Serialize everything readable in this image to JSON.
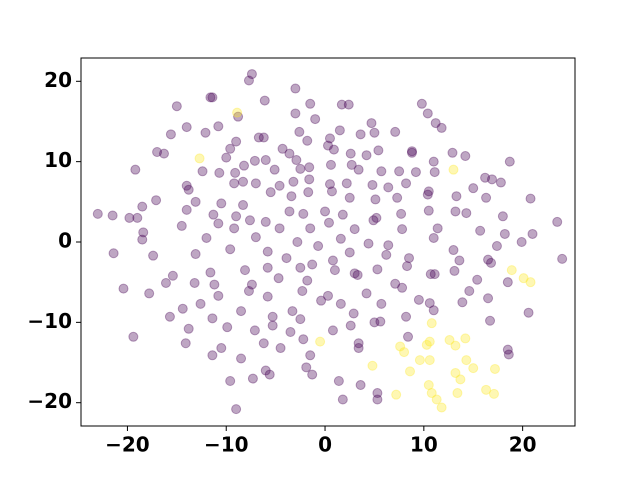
{
  "chart_data": {
    "type": "scatter",
    "xlim": [
      -24.7,
      25.3
    ],
    "ylim": [
      -22.9,
      22.9
    ],
    "xticks": [
      {
        "value": -20,
        "label": "−20"
      },
      {
        "value": -10,
        "label": "−10"
      },
      0,
      10,
      20
    ],
    "yticks": [
      {
        "value": -20,
        "label": "−20"
      },
      {
        "value": -10,
        "label": "−10"
      },
      0,
      10,
      20
    ],
    "alpha": 0.35,
    "series": [
      {
        "color": "#440154",
        "x": [
          -7.4,
          -7.7,
          -3,
          -11.4,
          -11.6,
          -6.1,
          -15,
          -3,
          -1.5,
          1.7,
          2.4,
          9.8,
          10.4,
          -8.8,
          -1,
          4.7,
          11.2,
          11.8,
          -14,
          -10.8,
          -2.6,
          -6.7,
          -6.2,
          -1.8,
          0.5,
          3.6,
          5,
          7.1,
          -15.6,
          -12.1,
          -9,
          -9.6,
          -4.3,
          0.9,
          1.5,
          -17,
          -16.3,
          -10,
          -8.2,
          -7.1,
          -6,
          -3.6,
          -2.9,
          0.3,
          2.6,
          4.2,
          5.4,
          8.8,
          8.8,
          11,
          12.9,
          14.2,
          -19.2,
          -12.4,
          -10.7,
          -9.1,
          -5.1,
          -2.5,
          -1.6,
          0.6,
          2.7,
          3.4,
          5.7,
          7.5,
          9.2,
          11.1,
          16.2,
          16.9,
          18.7,
          -14,
          -13.8,
          -9.2,
          -8.3,
          -7,
          -4.6,
          -3.2,
          -1.6,
          0.5,
          2.2,
          4.8,
          6.4,
          8.2,
          10.5,
          15,
          17.8,
          -18.5,
          -17.1,
          -13.1,
          -10.5,
          -8.3,
          -5.5,
          -3.4,
          -1.7,
          0.7,
          2.5,
          5.1,
          7.3,
          10.4,
          13.3,
          16.3,
          20.8,
          -23,
          -21.5,
          -19.8,
          -19,
          -14,
          -11.3,
          -9,
          -7.6,
          -3.6,
          -2.2,
          0,
          1.8,
          5.2,
          7.7,
          10.5,
          13.2,
          14.3,
          18,
          -18.4,
          -14.5,
          -10.8,
          -9.2,
          -6,
          -4.6,
          -1.5,
          0.4,
          3,
          4.9,
          7.8,
          11.4,
          15.7,
          18.2,
          21,
          23.5,
          -18.5,
          -12,
          -7,
          -2.8,
          -0.7,
          1.6,
          4.4,
          6.4,
          11,
          13,
          17.4,
          19.9,
          -21.4,
          -17.4,
          -13.1,
          -9.6,
          -5.8,
          -3.9,
          -1.3,
          0.8,
          2.5,
          6.2,
          8.5,
          13.6,
          16.5,
          24,
          -15.4,
          -11.6,
          -8.1,
          -5.8,
          -2.5,
          1,
          3,
          5.3,
          8.3,
          10.7,
          13.1,
          16.8,
          -20.4,
          -16.1,
          -13.2,
          -11.2,
          -7.4,
          -4.7,
          -1.8,
          3.3,
          7.1,
          11.1,
          15.4,
          18.5,
          -17.8,
          -10.8,
          -7.7,
          -5.8,
          -2.3,
          0.3,
          4.2,
          7.8,
          9.5,
          14.6,
          16.5,
          -14.4,
          -12.6,
          -8.5,
          -3.3,
          -0.4,
          1.6,
          5.7,
          10.6,
          13.9,
          -15.7,
          -11.4,
          -5.3,
          -2.5,
          2.9,
          5,
          8.2,
          11,
          20.6,
          -19.4,
          -13.8,
          -9.9,
          -7.1,
          -5.3,
          -3.5,
          0.8,
          2.6,
          5.6,
          16.7,
          -14.1,
          -10.5,
          -6.2,
          -2.2,
          3.4,
          8.4,
          18.5,
          -11.4,
          -4.5,
          3.4,
          18.6,
          -8.5,
          -1.5,
          -6,
          -5.6,
          -1.9,
          -1.3,
          1.4,
          -9.6,
          3.6,
          5.3,
          5.3,
          1.8,
          -9,
          -7.3
        ],
        "values": [
          20.9,
          20.1,
          19.1,
          18,
          18,
          17.6,
          16.9,
          16,
          17.2,
          17.1,
          17.1,
          17.2,
          16,
          15.6,
          15.3,
          14.8,
          14.8,
          14.2,
          14.3,
          14.4,
          13.7,
          13,
          13,
          12.6,
          12.9,
          13.4,
          13.6,
          13.7,
          13.4,
          13.6,
          12.5,
          11.6,
          11.6,
          11.5,
          13.9,
          11.2,
          11,
          10.5,
          9.5,
          10.1,
          10.2,
          11,
          10.2,
          12,
          11,
          10.8,
          11.4,
          11.3,
          11.1,
          10,
          11.1,
          10.7,
          9,
          8.8,
          8.6,
          8.6,
          9,
          9.1,
          9.3,
          9.6,
          9.6,
          9,
          8.8,
          8.8,
          8.7,
          8.7,
          8,
          7.8,
          10,
          7,
          6.5,
          7.3,
          7.5,
          7.3,
          7,
          7.5,
          7.8,
          7.2,
          7.3,
          7.1,
          6.8,
          7.3,
          6.3,
          6.7,
          7.4,
          4.4,
          5.2,
          5,
          4.8,
          4.6,
          6.2,
          5.7,
          6.2,
          6.3,
          5.5,
          5.3,
          5.5,
          5.9,
          5.7,
          5.5,
          5.4,
          3.5,
          3.3,
          3,
          3,
          4,
          3.4,
          3.2,
          2.7,
          3.8,
          3.5,
          3.8,
          3.4,
          3,
          3.5,
          3.9,
          3.8,
          3.6,
          3.2,
          1.2,
          2,
          2.3,
          1.7,
          2.5,
          1.7,
          1.7,
          2.4,
          1.6,
          2.7,
          1.6,
          1.7,
          1.4,
          1,
          1,
          2.5,
          0.3,
          0.5,
          0.6,
          0,
          -0.5,
          0.4,
          -0.2,
          -0.4,
          0.5,
          -1,
          -0.5,
          0,
          -1.4,
          -1.7,
          -1.5,
          -0.9,
          -1.2,
          -2,
          -2.8,
          -2.3,
          -1.3,
          -1.6,
          -2,
          -2.3,
          -2.2,
          -2.1,
          -4.2,
          -3.8,
          -3.5,
          -3.2,
          -3.2,
          -3.5,
          -3.9,
          -3.4,
          -3,
          -4,
          -3.6,
          -2.6,
          -5.8,
          -5.1,
          -5.1,
          -5.3,
          -5.3,
          -4.5,
          -4.8,
          -4.1,
          -5.2,
          -4,
          -4.7,
          -5,
          -6.4,
          -6.7,
          -6.1,
          -6.8,
          -6.1,
          -6.7,
          -6.4,
          -5.7,
          -7.2,
          -6.1,
          -7,
          -8.3,
          -7.7,
          -8.6,
          -8.6,
          -7.3,
          -7.7,
          -7.7,
          -7.6,
          -7.5,
          -9.3,
          -9.5,
          -9.3,
          -9.6,
          -8.9,
          -10,
          -9.3,
          -8.5,
          -8.8,
          -11.8,
          -10.8,
          -10.6,
          -11,
          -10.4,
          -11.2,
          -11,
          -10.4,
          -9.9,
          -9.8,
          -12.6,
          -13.2,
          -12.6,
          -12.1,
          -12.6,
          -11.8,
          -13.4,
          -14.1,
          -13.2,
          -13.2,
          -14,
          -14.5,
          -14.1,
          -16,
          -16.5,
          -15.6,
          -16.5,
          -17.3,
          -17.3,
          -17.8,
          -18.8,
          -19.6,
          -19.6,
          -20.8,
          -17
        ]
      },
      {
        "color": "#fde725",
        "x": [
          -8.9,
          -12.7,
          13,
          -0.5,
          10.8,
          10.3,
          10.6,
          12.6,
          14.2,
          13.2,
          7.6,
          8,
          8.6,
          4.8,
          9.6,
          14.3,
          15,
          13.2,
          13.7,
          17.2,
          10.5,
          11.3,
          11.8,
          10.8,
          13.4,
          16.3,
          17.1,
          7.2,
          18.9,
          20.1,
          20.8,
          10.6
        ],
        "values": [
          16.1,
          10.4,
          9,
          -12.4,
          -10.1,
          -12.8,
          -12.4,
          -12.2,
          -12,
          -12.9,
          -13,
          -13.7,
          -16.1,
          -15.4,
          -14.7,
          -14.7,
          -15.7,
          -16.3,
          -17.1,
          -15.8,
          -17.8,
          -19.6,
          -20.6,
          -18.8,
          -18.8,
          -18.4,
          -18.9,
          -19,
          -3.5,
          -4.5,
          -5,
          -14.7
        ]
      }
    ]
  }
}
